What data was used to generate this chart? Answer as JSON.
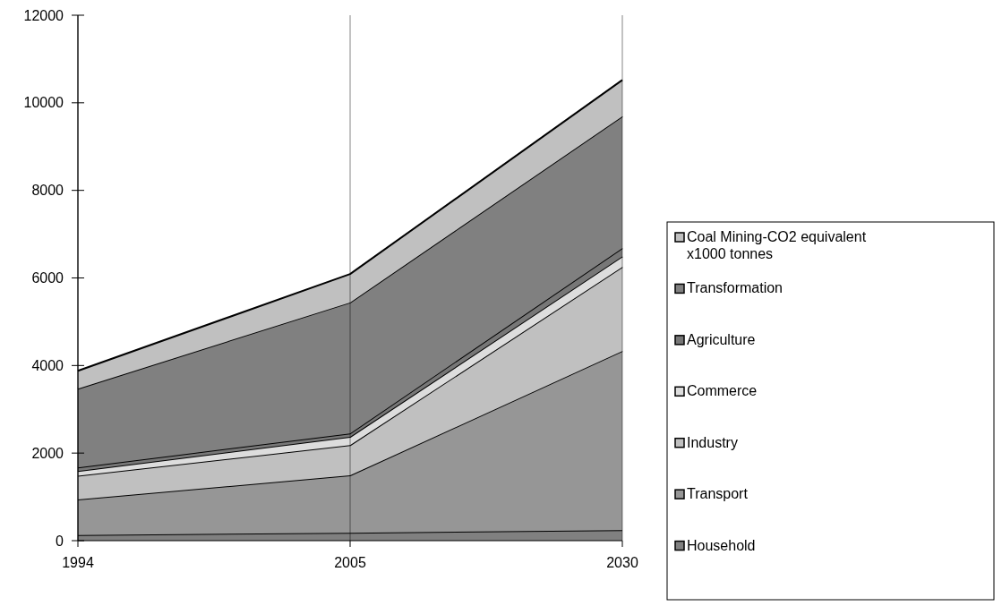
{
  "chart_data": {
    "type": "area",
    "stacked": true,
    "categories": [
      "1994",
      "2005",
      "2030"
    ],
    "ylim": [
      0,
      12000
    ],
    "yticks": [
      0,
      2000,
      4000,
      6000,
      8000,
      10000,
      12000
    ],
    "grid": "x",
    "legend": "right",
    "series": [
      {
        "name": "Household",
        "color": "#808080",
        "values": [
          130,
          180,
          240
        ]
      },
      {
        "name": "Transport",
        "color": "#969696",
        "values": [
          810,
          1310,
          4090
        ]
      },
      {
        "name": "Industry",
        "color": "#c0c0c0",
        "values": [
          540,
          690,
          1920
        ]
      },
      {
        "name": "Commerce",
        "color": "#dddddd",
        "values": [
          110,
          190,
          240
        ]
      },
      {
        "name": "Agriculture",
        "color": "#777777",
        "values": [
          80,
          80,
          190
        ]
      },
      {
        "name": "Transformation",
        "color": "#808080",
        "values": [
          1800,
          2990,
          3010
        ]
      },
      {
        "name": "Coal Mining-CO2 equivalent x1000 tonnes",
        "color": "#c0c0c0",
        "values": [
          410,
          650,
          830
        ]
      }
    ]
  }
}
